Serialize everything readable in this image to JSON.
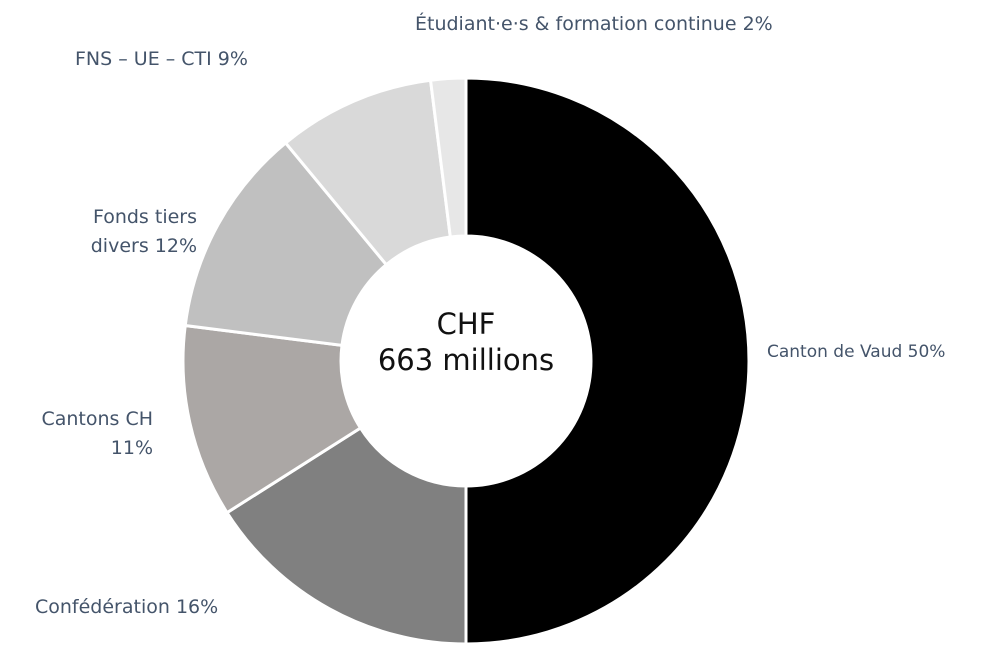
{
  "chart_data": {
    "type": "pie",
    "categories": [
      "Canton de Vaud",
      "Confédération",
      "Cantons CH",
      "Fonds tiers divers",
      "FNS – UE – CTI",
      "Étudiant·e·s & formation continue"
    ],
    "values": [
      50,
      16,
      11,
      12,
      9,
      2
    ],
    "value_labels": [
      "50%",
      "16%",
      "11%",
      "12%",
      "9%",
      "2%"
    ],
    "colors": [
      "#000000",
      "#808080",
      "#aba7a5",
      "#c0c0c0",
      "#d9d9d9",
      "#e7e7e7"
    ],
    "center_text": [
      "CHF",
      "663 millions"
    ]
  }
}
